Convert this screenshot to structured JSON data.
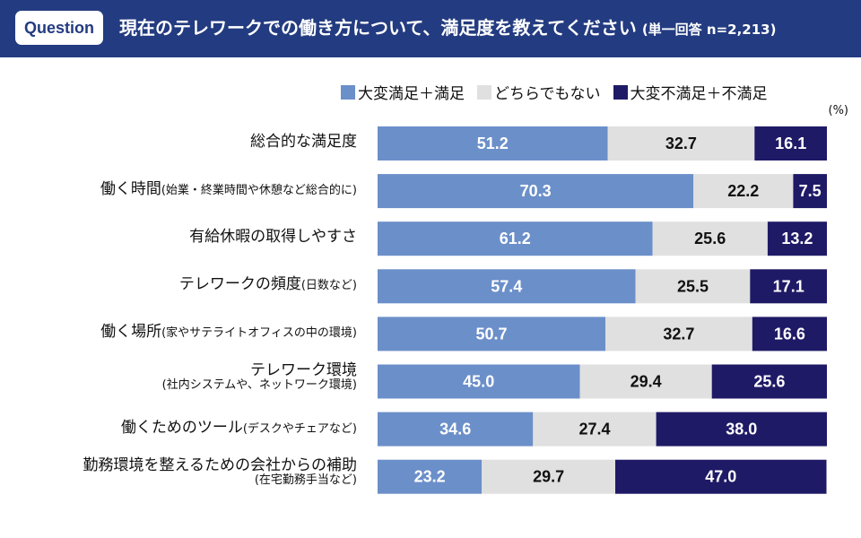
{
  "header": {
    "badge": "Question",
    "title": "現在のテレワークでの働き方について、満足度を教えてください",
    "subtitle": "(単一回答 n=2,213)"
  },
  "colors": {
    "header_bg": "#233b80",
    "satisfied": "#6b8fc9",
    "neutral": "#e0e0e0",
    "dissatisfied": "#1f1a66"
  },
  "chart_data": {
    "type": "bar",
    "orientation": "horizontal-stacked-100",
    "unit_label": "(%)",
    "legend": [
      "大変満足＋満足",
      "どちらでもない",
      "大変不満足＋不満足"
    ],
    "legend_placement": "top-right",
    "categories": [
      {
        "main": "総合的な満足度",
        "note": "",
        "second_line": ""
      },
      {
        "main": "働く時間",
        "note": "(始業・終業時間や休憩など総合的に)",
        "second_line": ""
      },
      {
        "main": "有給休暇の取得しやすさ",
        "note": "",
        "second_line": ""
      },
      {
        "main": "テレワークの頻度",
        "note": "(日数など)",
        "second_line": ""
      },
      {
        "main": "働く場所",
        "note": "(家やサテライトオフィスの中の環境)",
        "second_line": ""
      },
      {
        "main": "テレワーク環境",
        "note": "",
        "second_line": "(社内システムや、ネットワーク環境)"
      },
      {
        "main": "働くためのツール",
        "note": "(デスクやチェアなど)",
        "second_line": ""
      },
      {
        "main": "勤務環境を整えるための会社からの補助",
        "note": "",
        "second_line": "(在宅勤務手当など)"
      }
    ],
    "series": [
      {
        "name": "大変満足＋満足",
        "values": [
          51.2,
          70.3,
          61.2,
          57.4,
          50.7,
          45.0,
          34.6,
          23.2
        ]
      },
      {
        "name": "どちらでもない",
        "values": [
          32.7,
          22.2,
          25.6,
          25.5,
          32.7,
          29.4,
          27.4,
          29.7
        ]
      },
      {
        "name": "大変不満足＋不満足",
        "values": [
          16.1,
          7.5,
          13.2,
          17.1,
          16.6,
          25.6,
          38.0,
          47.0
        ]
      }
    ],
    "xlim": [
      0,
      100
    ]
  }
}
